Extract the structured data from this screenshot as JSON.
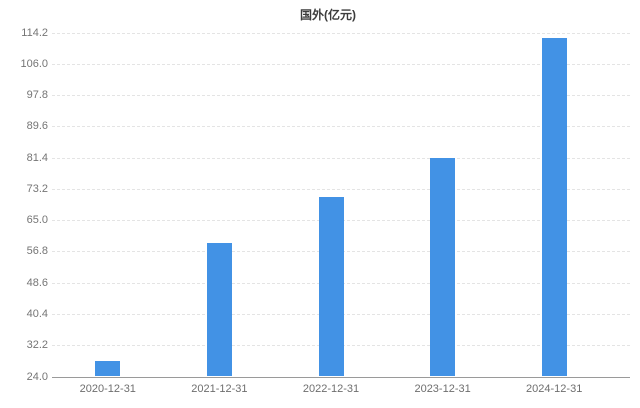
{
  "chart_data": {
    "type": "bar",
    "title": "国外(亿元)",
    "categories": [
      "2020-12-31",
      "2021-12-31",
      "2022-12-31",
      "2023-12-31",
      "2024-12-31"
    ],
    "values": [
      28.1,
      59.2,
      71.2,
      81.4,
      113.0
    ],
    "series_name": "国外",
    "unit": "亿元",
    "xlabel": "",
    "ylabel": "",
    "ylim": [
      24.0,
      114.2
    ],
    "ytick_step": 8.2,
    "yticks": [
      24.0,
      32.2,
      40.4,
      48.6,
      56.8,
      65.0,
      73.2,
      81.4,
      89.6,
      97.8,
      106.0,
      114.2
    ],
    "ytick_decimals": 1,
    "grid": "horizontal-dashed",
    "legend": "none"
  },
  "colors": {
    "bar": "#4292E5",
    "gridline": "#e4e4e4",
    "axis_line": "#9a9a9a",
    "y_tick_label": "#757575",
    "x_tick_label": "#6e6e6e",
    "title": "#3c3c3c",
    "background": "#ffffff"
  }
}
